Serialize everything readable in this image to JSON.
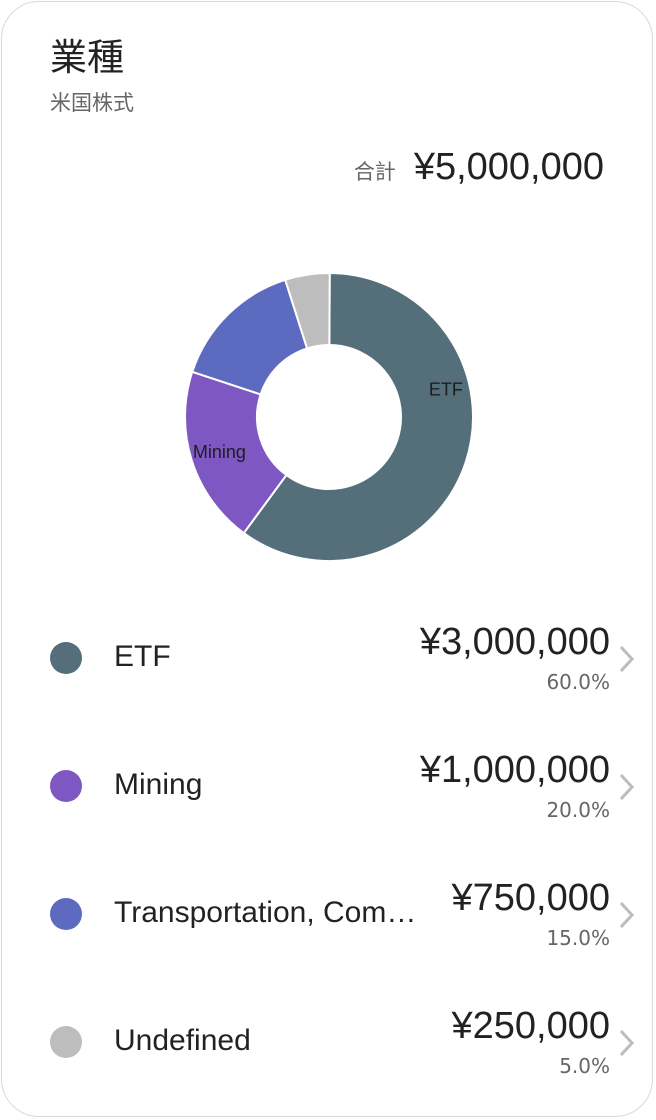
{
  "header": {
    "title": "業種",
    "subtitle": "米国株式"
  },
  "total": {
    "label": "合計",
    "value": "¥5,000,000"
  },
  "chart_data": {
    "type": "pie",
    "donut": true,
    "categories": [
      "ETF",
      "Mining",
      "Transportation, Com…",
      "Undefined"
    ],
    "values": [
      3000000,
      1000000,
      750000,
      250000
    ],
    "percents": [
      60.0,
      20.0,
      15.0,
      5.0
    ],
    "slice_labels": [
      "ETF",
      "Mining",
      "",
      ""
    ],
    "colors": [
      "#546E7A",
      "#7E57C2",
      "#5C6BC0",
      "#BDBDBD"
    ],
    "legend": "below"
  },
  "legend": [
    {
      "name": "ETF",
      "amount": "¥3,000,000",
      "percent": "60.0%",
      "color": "#546E7A"
    },
    {
      "name": "Mining",
      "amount": "¥1,000,000",
      "percent": "20.0%",
      "color": "#7E57C2"
    },
    {
      "name": "Transportation, Com…",
      "amount": "¥750,000",
      "percent": "15.0%",
      "color": "#5C6BC0"
    },
    {
      "name": "Undefined",
      "amount": "¥250,000",
      "percent": "5.0%",
      "color": "#BDBDBD"
    }
  ]
}
